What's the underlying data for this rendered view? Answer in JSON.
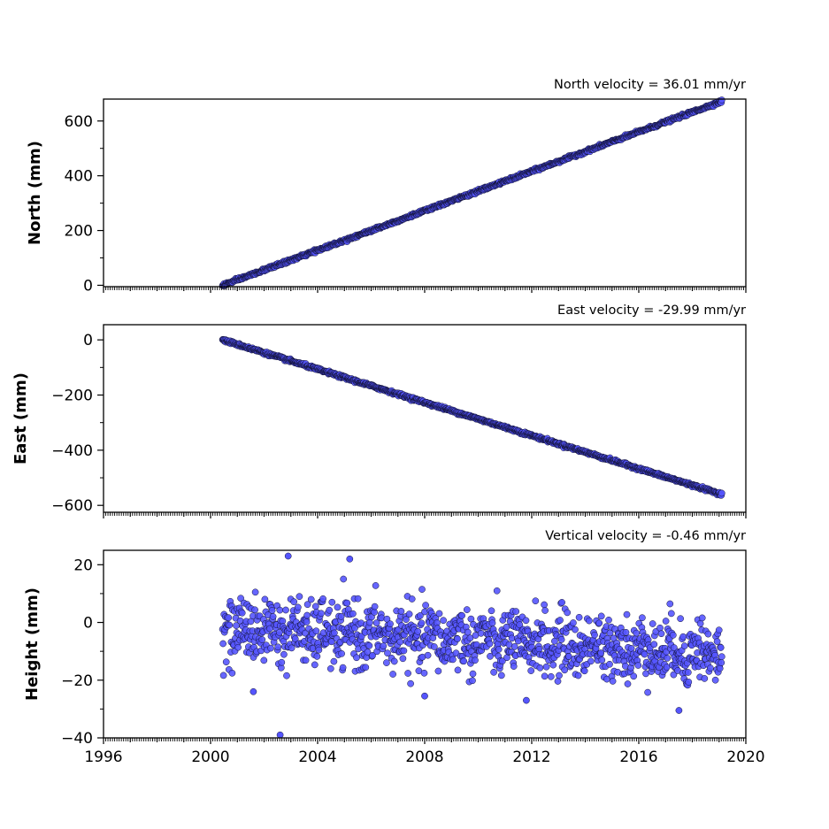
{
  "chart_data": [
    {
      "type": "scatter",
      "title": "North velocity = 36.01 mm/yr",
      "xlabel": "",
      "ylabel": "North (mm)",
      "xlim": [
        1996,
        2020
      ],
      "ylim": [
        -5,
        680
      ],
      "yticks": [
        0,
        200,
        400,
        600
      ],
      "ytick_labels": [
        "0",
        "200",
        "400",
        "600"
      ],
      "series": [
        {
          "model": "linear",
          "x_start": 2000.45,
          "x_end": 2019.1,
          "y_start": 0,
          "y_end": 672,
          "scatter": 2.5
        }
      ],
      "marker_color": "#5555ff",
      "marker_edge_color": "#111133"
    },
    {
      "type": "scatter",
      "title": "East velocity = -29.99 mm/yr",
      "xlabel": "",
      "ylabel": "East (mm)",
      "xlim": [
        1996,
        2020
      ],
      "ylim": [
        -625,
        55
      ],
      "yticks": [
        0,
        -200,
        -400,
        -600
      ],
      "ytick_labels": [
        "0",
        "−200",
        "−400",
        "−600"
      ],
      "series": [
        {
          "model": "linear",
          "x_start": 2000.45,
          "x_end": 2019.1,
          "y_start": 0,
          "y_end": -560,
          "scatter": 2.5
        }
      ],
      "marker_color": "#5555ff",
      "marker_edge_color": "#111133"
    },
    {
      "type": "scatter",
      "title": "Vertical velocity = -0.46 mm/yr",
      "xlabel": "",
      "ylabel": "Height (mm)",
      "xlim": [
        1996,
        2020
      ],
      "ylim": [
        -40,
        25
      ],
      "yticks": [
        20,
        0,
        -20,
        -40
      ],
      "ytick_labels": [
        "20",
        "0",
        "−20",
        "−40"
      ],
      "series": [
        {
          "model": "noise",
          "x_start": 2000.45,
          "x_end": 2019.1,
          "y_start": -2,
          "y_end": -10.5,
          "scatter": 5.5,
          "outliers": [
            [
              2002.6,
              -39
            ],
            [
              2002.9,
              23
            ],
            [
              2005.2,
              22
            ],
            [
              2001.6,
              -24
            ],
            [
              2017.5,
              -30.5
            ],
            [
              2008.0,
              -25.5
            ],
            [
              2011.8,
              -27
            ]
          ]
        }
      ],
      "marker_color": "#5555ff",
      "marker_edge_color": "#111133"
    }
  ],
  "xaxis": {
    "ticks": [
      1996,
      2000,
      2004,
      2008,
      2012,
      2016,
      2020
    ],
    "tick_labels": [
      "1996",
      "2000",
      "2004",
      "2008",
      "2012",
      "2016",
      "2020"
    ],
    "minor_per_year": 12
  }
}
